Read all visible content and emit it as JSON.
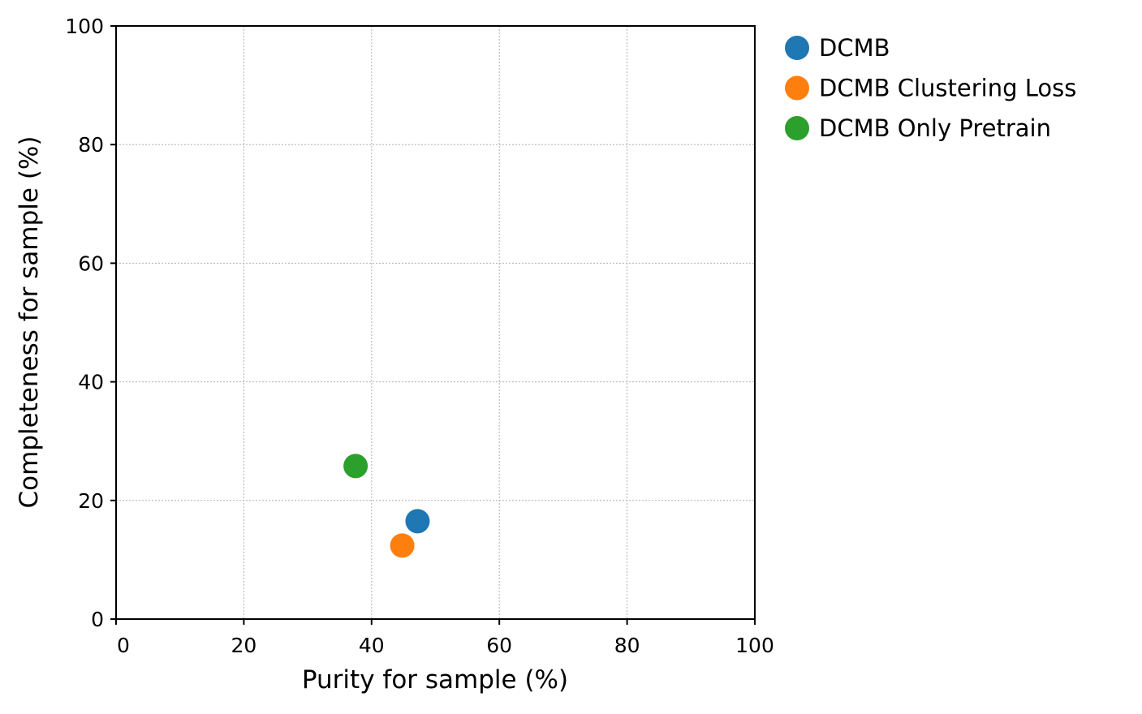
{
  "chart_data": {
    "type": "scatter",
    "xlabel": "Purity for sample (%)",
    "ylabel": "Completeness for sample (%)",
    "xlim": [
      0,
      100
    ],
    "ylim": [
      0,
      100
    ],
    "xticks": [
      0,
      20,
      40,
      60,
      80,
      100
    ],
    "yticks": [
      0,
      20,
      40,
      60,
      80,
      100
    ],
    "grid": true,
    "legend_position": "outside-top-right",
    "series": [
      {
        "name": "DCMB",
        "color": "#1f77b4",
        "points": [
          {
            "x": 47.2,
            "y": 16.5
          }
        ]
      },
      {
        "name": "DCMB Clustering Loss",
        "color": "#ff7f0e",
        "points": [
          {
            "x": 44.8,
            "y": 12.4
          }
        ]
      },
      {
        "name": "DCMB Only Pretrain",
        "color": "#2ca02c",
        "points": [
          {
            "x": 37.5,
            "y": 25.8
          }
        ]
      }
    ]
  }
}
